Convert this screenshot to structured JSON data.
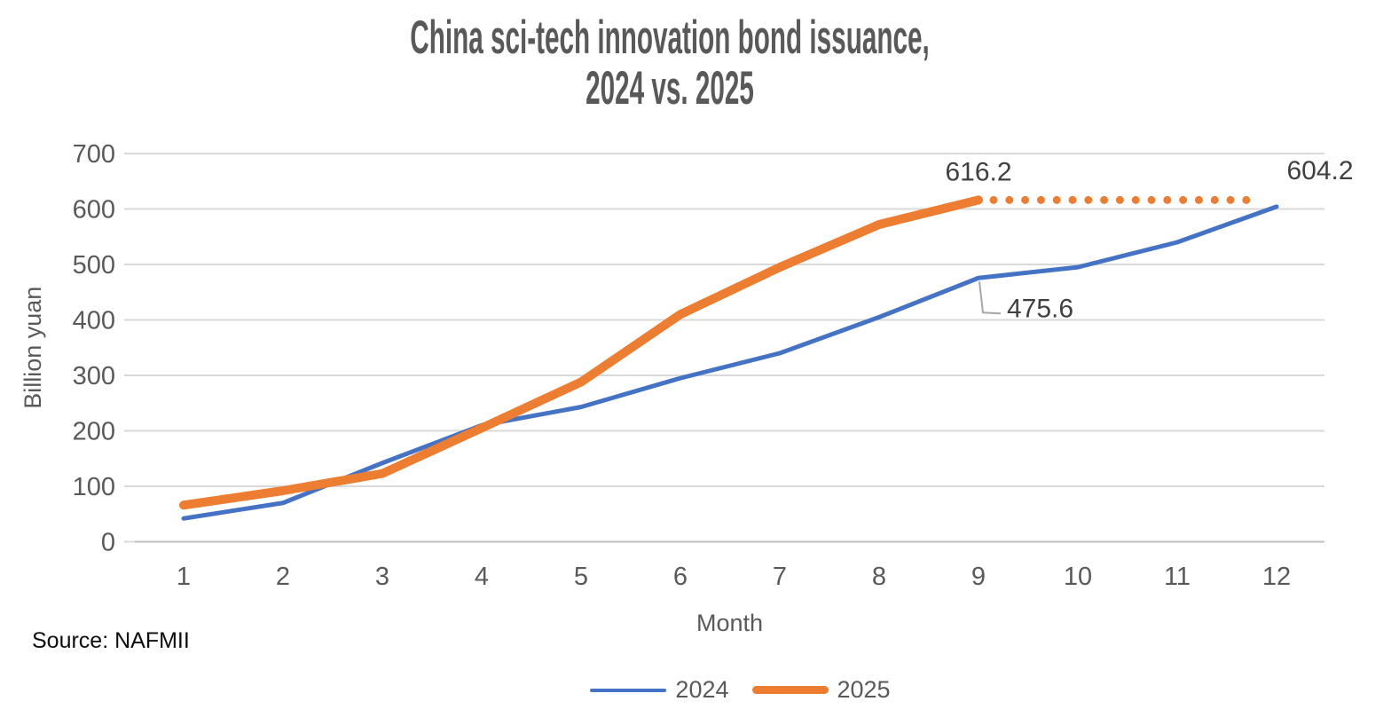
{
  "title": {
    "line1": "China sci-tech innovation bond issuance,",
    "line2": "2024 vs. 2025"
  },
  "source": "Source: NAFMII",
  "chart_data": {
    "type": "line",
    "x": [
      1,
      2,
      3,
      4,
      5,
      6,
      7,
      8,
      9,
      10,
      11,
      12
    ],
    "xticks": [
      "1",
      "2",
      "3",
      "4",
      "5",
      "6",
      "7",
      "8",
      "9",
      "10",
      "11",
      "12"
    ],
    "yticks": [
      "0",
      "100",
      "200",
      "300",
      "400",
      "500",
      "600",
      "700"
    ],
    "xlabel": "Month",
    "ylabel": "Billion yuan",
    "ylim": [
      0,
      700
    ],
    "ytick_step": 100,
    "grid": true,
    "legend_position": "bottom",
    "series": [
      {
        "name": "2024",
        "color": "#4472C4",
        "style": "solid",
        "stroke_width": 5,
        "values": [
          42,
          70,
          142,
          210,
          243,
          295,
          340,
          405,
          475.6,
          495,
          540,
          604.2
        ],
        "in_legend": true
      },
      {
        "name": "2025",
        "color": "#ED7D31",
        "style": "solid",
        "stroke_width": 10,
        "values": [
          66,
          92,
          123,
          205,
          288,
          410,
          495,
          572,
          616.2,
          null,
          null,
          null
        ],
        "in_legend": true
      },
      {
        "name": "2025 level projection",
        "color": "#ED7D31",
        "style": "dotted",
        "stroke_width": 9,
        "values": [
          null,
          null,
          null,
          null,
          null,
          null,
          null,
          null,
          616.2,
          616.2,
          616.2,
          616.2
        ],
        "in_legend": false
      }
    ],
    "annotations": [
      {
        "text": "616.2",
        "month": 9,
        "value": 616.2,
        "placement": "above",
        "leader": false
      },
      {
        "text": "604.2",
        "month": 12,
        "value": 604.2,
        "placement": "above-right",
        "leader": false
      },
      {
        "text": "475.6",
        "month": 9,
        "value": 475.6,
        "placement": "below-right",
        "leader": true
      }
    ],
    "legend": [
      "2024",
      "2025"
    ]
  },
  "colors": {
    "blue_series": "#4472C4",
    "orange_series": "#ED7D31",
    "gridline": "#D9D9D9",
    "axis_line": "#BFBFBF",
    "axis_text": "#595959",
    "title_text": "#595959",
    "data_label_text": "#404040",
    "leader_line": "#A6A6A6"
  }
}
